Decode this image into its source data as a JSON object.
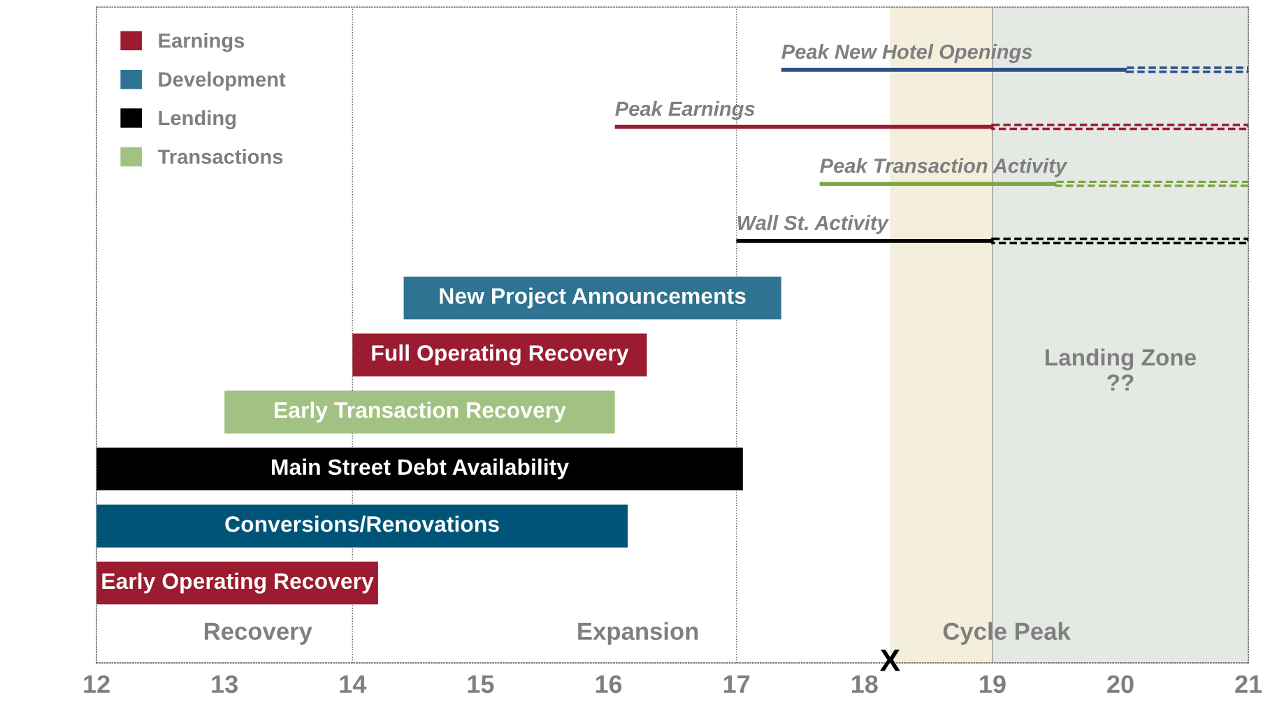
{
  "chart_data": {
    "type": "bar",
    "orientation": "horizontal",
    "categories": [
      "Peak New Hotel Openings",
      "Peak Earnings",
      "Peak Transaction Activity",
      "Wall St. Activity",
      "New Project Announcements",
      "Full Operating Recovery",
      "Early Transaction Recovery",
      "Main Street Debt Availability",
      "Conversions/Renovations",
      "Early Operating Recovery"
    ],
    "series": [
      {
        "name": "Earnings",
        "color": "#9b1b30",
        "values": [
          null,
          null,
          null,
          null,
          null,
          2.3,
          null,
          null,
          null,
          2.2
        ],
        "base": [
          null,
          null,
          null,
          null,
          null,
          14.0,
          null,
          null,
          null,
          12.0
        ]
      },
      {
        "name": "Development",
        "color": "#2e7391",
        "colors": [
          null,
          null,
          null,
          null,
          "#2e7391",
          null,
          null,
          null,
          "#005477",
          null
        ],
        "values": [
          null,
          null,
          null,
          null,
          2.95,
          null,
          null,
          null,
          4.15,
          null
        ],
        "base": [
          null,
          null,
          null,
          null,
          14.4,
          null,
          null,
          null,
          12.0,
          null
        ]
      },
      {
        "name": "Lending",
        "color": "#000000",
        "values": [
          null,
          null,
          null,
          null,
          null,
          null,
          null,
          5.05,
          null,
          null
        ],
        "base": [
          null,
          null,
          null,
          null,
          null,
          null,
          null,
          12.0,
          null,
          null
        ]
      },
      {
        "name": "Transactions",
        "color": "#a2c283",
        "values": [
          null,
          null,
          null,
          null,
          null,
          null,
          3.05,
          null,
          null,
          null
        ],
        "base": [
          null,
          null,
          null,
          null,
          null,
          null,
          13.0,
          null,
          null,
          null
        ]
      },
      {
        "line_style": "solid",
        "color": "#2b4f8a",
        "values": [
          2.7,
          null,
          null,
          null,
          null,
          null,
          null,
          null,
          null,
          null
        ],
        "base": [
          17.35,
          null,
          null,
          null,
          null,
          null,
          null,
          null,
          null,
          null
        ]
      },
      {
        "line_style": "dashed",
        "color": "#2b4f8a",
        "values": [
          0.95,
          null,
          null,
          null,
          null,
          null,
          null,
          null,
          null,
          null
        ],
        "base": [
          20.05,
          null,
          null,
          null,
          null,
          null,
          null,
          null,
          null,
          null
        ]
      },
      {
        "line_style": "solid",
        "color": "#9b1b30",
        "values": [
          null,
          2.95,
          null,
          null,
          null,
          null,
          null,
          null,
          null,
          null
        ],
        "base": [
          null,
          16.05,
          null,
          null,
          null,
          null,
          null,
          null,
          null,
          null
        ]
      },
      {
        "line_style": "dashed",
        "color": "#9b1b30",
        "values": [
          null,
          2.0,
          null,
          null,
          null,
          null,
          null,
          null,
          null,
          null
        ],
        "base": [
          null,
          19.0,
          null,
          null,
          null,
          null,
          null,
          null,
          null,
          null
        ]
      },
      {
        "line_style": "solid",
        "color": "#7fa344",
        "values": [
          null,
          null,
          1.85,
          null,
          null,
          null,
          null,
          null,
          null,
          null
        ],
        "base": [
          null,
          null,
          17.65,
          null,
          null,
          null,
          null,
          null,
          null,
          null
        ]
      },
      {
        "line_style": "dashed",
        "color": "#7fa344",
        "values": [
          null,
          null,
          1.5,
          null,
          null,
          null,
          null,
          null,
          null,
          null
        ],
        "base": [
          null,
          null,
          19.5,
          null,
          null,
          null,
          null,
          null,
          null,
          null
        ]
      },
      {
        "line_style": "solid",
        "color": "#000000",
        "values": [
          null,
          null,
          null,
          2.0,
          null,
          null,
          null,
          null,
          null,
          null
        ],
        "base": [
          null,
          null,
          null,
          17.0,
          null,
          null,
          null,
          null,
          null,
          null
        ]
      },
      {
        "line_style": "dashed",
        "color": "#000000",
        "values": [
          null,
          null,
          null,
          2.0,
          null,
          null,
          null,
          null,
          null,
          null
        ],
        "base": [
          null,
          null,
          null,
          19.0,
          null,
          null,
          null,
          null,
          null,
          null
        ]
      }
    ],
    "xlim": [
      12,
      21
    ],
    "xticks": [
      12,
      13,
      14,
      15,
      16,
      17,
      18,
      19,
      20,
      21
    ],
    "tick_labels": "x",
    "legend": "top left",
    "grid": false,
    "ref_lines": [
      {
        "axis": "x",
        "value": 14,
        "color": "#555555",
        "line_style": "dotted"
      },
      {
        "axis": "x",
        "value": 17,
        "color": "#555555",
        "line_style": "dotted"
      },
      {
        "axis": "x",
        "value": 19,
        "color": "#999999",
        "line_style": "solid"
      }
    ],
    "bands": [
      {
        "axis": "x",
        "from": 18.2,
        "to": 19,
        "color": "#f4eedc"
      },
      {
        "axis": "x",
        "from": 19,
        "to": 21,
        "color": "#e4e9e3",
        "label": "Landing Zone\n??"
      }
    ],
    "annotations": [
      "Recovery",
      "Expansion",
      "Cycle Peak",
      "X"
    ]
  }
}
